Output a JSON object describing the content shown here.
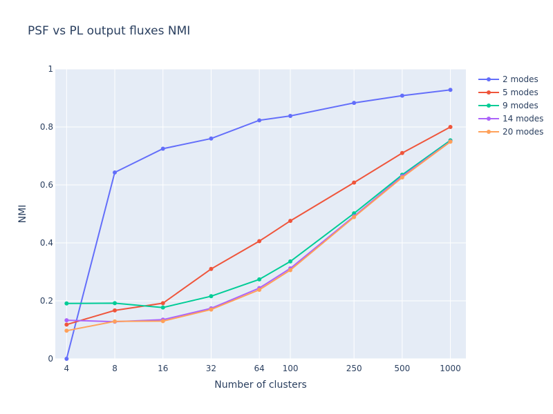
{
  "chart_data": {
    "type": "line",
    "title": "PSF vs PL output fluxes NMI",
    "xlabel": "Number of clusters",
    "ylabel": "NMI",
    "x_scale": "log",
    "x": [
      4,
      8,
      16,
      32,
      64,
      100,
      250,
      500,
      1000
    ],
    "x_ticks": [
      "4",
      "8",
      "16",
      "32",
      "64",
      "100",
      "250",
      "500",
      "1000"
    ],
    "xlim": [
      3.4,
      1250
    ],
    "ylim": [
      0,
      1
    ],
    "y_ticks": [
      "0",
      "0.2",
      "0.4",
      "0.6",
      "0.8",
      "1"
    ],
    "grid": true,
    "legend_position": "top-right",
    "series": [
      {
        "name": "2 modes",
        "color": "#636efa",
        "values": [
          0.0,
          0.643,
          0.725,
          0.76,
          0.823,
          0.838,
          0.883,
          0.908,
          0.928
        ]
      },
      {
        "name": "5 modes",
        "color": "#ef553b",
        "values": [
          0.118,
          0.167,
          0.192,
          0.31,
          0.406,
          0.476,
          0.608,
          0.71,
          0.8
        ]
      },
      {
        "name": "9 modes",
        "color": "#00cc96",
        "values": [
          0.191,
          0.192,
          0.177,
          0.216,
          0.274,
          0.336,
          0.502,
          0.635,
          0.754
        ]
      },
      {
        "name": "14 modes",
        "color": "#ab63fa",
        "values": [
          0.133,
          0.128,
          0.135,
          0.174,
          0.244,
          0.312,
          0.492,
          0.63,
          0.75
        ]
      },
      {
        "name": "20 modes",
        "color": "#ffa15a",
        "values": [
          0.097,
          0.129,
          0.13,
          0.17,
          0.238,
          0.306,
          0.489,
          0.626,
          0.749
        ]
      }
    ]
  }
}
